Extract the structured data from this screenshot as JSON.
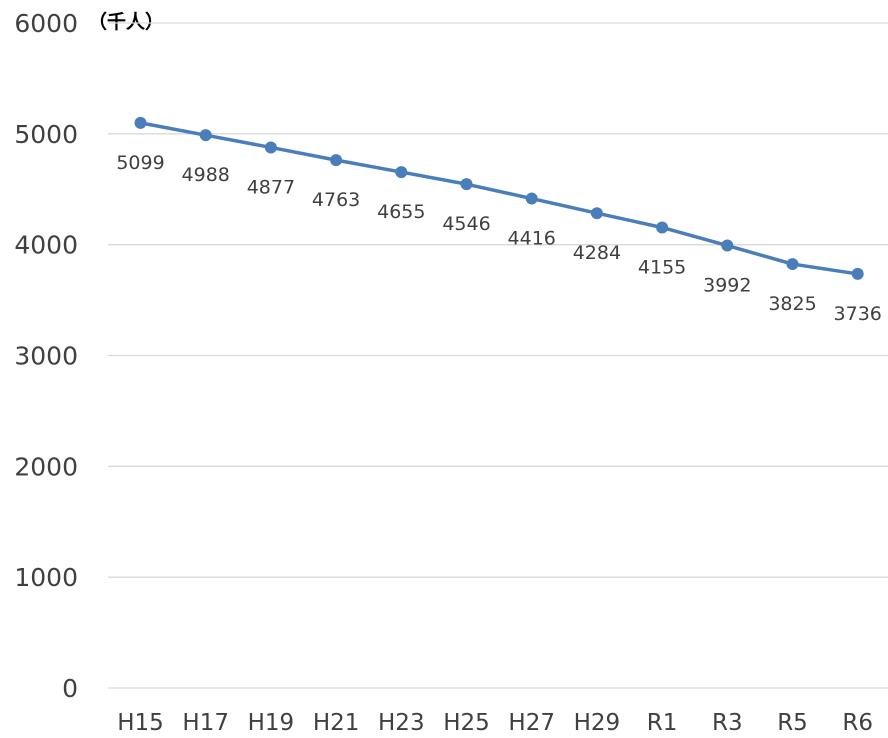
{
  "chart_data": {
    "type": "line",
    "unit_label": "（千人）",
    "categories": [
      "H15",
      "H17",
      "H19",
      "H21",
      "H23",
      "H25",
      "H27",
      "H29",
      "R1",
      "R3",
      "R5",
      "R6"
    ],
    "series": [
      {
        "values": [
          5099,
          4988,
          4877,
          4763,
          4655,
          4546,
          4416,
          4284,
          4155,
          3992,
          3825,
          3736
        ],
        "color": "#4a7ebb"
      }
    ],
    "ylim": [
      0,
      6000
    ],
    "yticks": [
      0,
      1000,
      2000,
      3000,
      4000,
      5000,
      6000
    ],
    "grid": true,
    "data_labels": true,
    "legend": "none",
    "colors": {
      "line": "#4a7ebb",
      "grid": "#d9d9d9",
      "text": "#404040"
    }
  }
}
